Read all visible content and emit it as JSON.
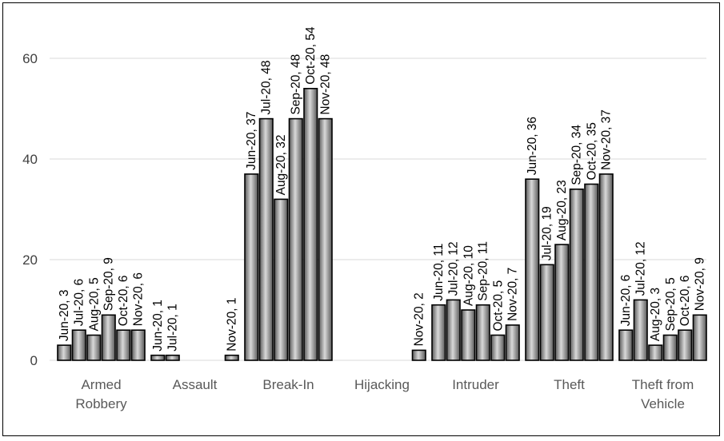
{
  "chart_data": {
    "type": "bar",
    "title": "",
    "xlabel": "",
    "ylabel": "",
    "ylim": [
      0,
      65
    ],
    "yticks": [
      0,
      20,
      40,
      60
    ],
    "grid": true,
    "legend": "none",
    "bar_style": "gray-gradient-with-black-outline",
    "categories": [
      [
        "Armed",
        "Robbery"
      ],
      [
        "Assault"
      ],
      [
        "Break-In"
      ],
      [
        "Hijacking"
      ],
      [
        "Intruder"
      ],
      [
        "Theft"
      ],
      [
        "Theft from",
        "Vehicle"
      ]
    ],
    "series_names": [
      "Jun-20",
      "Jul-20",
      "Aug-20",
      "Sep-20",
      "Oct-20",
      "Nov-20"
    ],
    "values": [
      [
        3,
        6,
        5,
        9,
        6,
        6
      ],
      [
        1,
        1,
        null,
        null,
        null,
        1
      ],
      [
        37,
        48,
        32,
        48,
        54,
        48
      ],
      [
        null,
        null,
        null,
        null,
        null,
        2
      ],
      [
        11,
        12,
        10,
        11,
        5,
        7
      ],
      [
        36,
        19,
        23,
        34,
        35,
        37
      ],
      [
        6,
        12,
        3,
        5,
        6,
        9
      ]
    ],
    "data_labels": [
      [
        "Jun-20, 3",
        "Jul-20, 6",
        "Aug-20, 5",
        "Sep-20, 9",
        "Oct-20, 6",
        "Nov-20, 6"
      ],
      [
        "Jun-20, 1",
        "Jul-20, 1",
        "",
        "",
        "",
        "Nov-20, 1"
      ],
      [
        "Jun-20, 37",
        "Jul-20, 48",
        "Aug-20, 32",
        "Sep-20, 48",
        "Oct-20, 54",
        "Nov-20, 48"
      ],
      [
        "",
        "",
        "",
        "",
        "",
        "Nov-20, 2"
      ],
      [
        "Jun-20, 11",
        "Jul-20, 12",
        "Aug-20, 10",
        "Sep-20, 11",
        "Oct-20, 5",
        "Nov-20, 7"
      ],
      [
        "Jun-20, 36",
        "Jul-20, 19",
        "Aug-20, 23",
        "Sep-20, 34",
        "Oct-20, 35",
        "Nov-20, 37"
      ],
      [
        "Jun-20, 6",
        "Jul-20, 12",
        "Aug-20, 3",
        "Sep-20, 5",
        "Oct-20, 6",
        "Nov-20, 9"
      ]
    ],
    "colors": {
      "bar_light": "#d9d9d9",
      "bar_mid": "#a6a6a6",
      "bar_dark": "#595959",
      "outline": "#000000",
      "gridline": "#d9d9d9",
      "axis_text": "#404040"
    }
  }
}
